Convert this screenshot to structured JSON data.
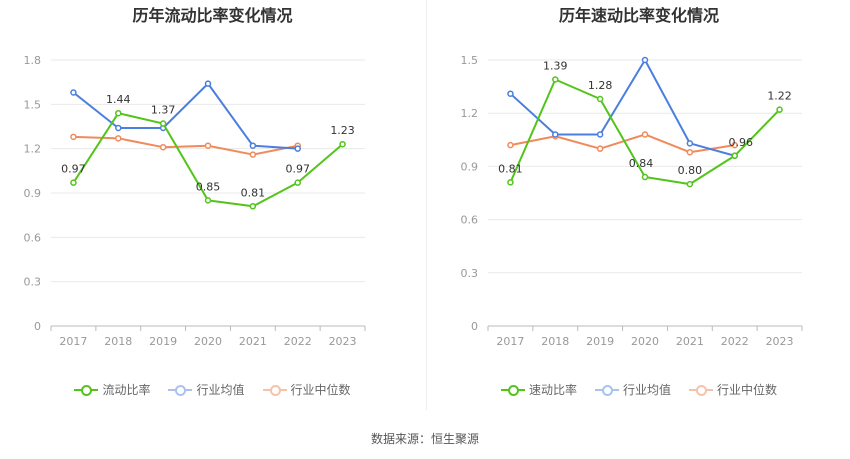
{
  "source": "数据来源：恒生聚源",
  "colors": {
    "primary": "#52c41a",
    "industry_avg": "#4a7fe0",
    "industry_median": "#f08a5d",
    "grid": "#e9e9e9",
    "axis": "#bbbbbb"
  },
  "chart_data": [
    {
      "type": "line",
      "title": "历年流动比率变化情况",
      "categories": [
        "2017",
        "2018",
        "2019",
        "2020",
        "2021",
        "2022",
        "2023"
      ],
      "ylim": [
        0,
        1.8
      ],
      "yticks": [
        "0",
        "0.3",
        "0.6",
        "0.9",
        "1.2",
        "1.5",
        "1.8"
      ],
      "grid": true,
      "legend_position": "bottom",
      "series": [
        {
          "name": "流动比率",
          "color": "#52c41a",
          "values": [
            0.97,
            1.44,
            1.37,
            0.85,
            0.81,
            0.97,
            1.23
          ],
          "labels": [
            "0.97",
            "1.44",
            "1.37",
            "0.85",
            "0.81",
            "0.97",
            "1.23"
          ]
        },
        {
          "name": "行业均值",
          "color": "#4a7fe0",
          "values": [
            1.58,
            1.34,
            1.34,
            1.64,
            1.22,
            1.2,
            null
          ]
        },
        {
          "name": "行业中位数",
          "color": "#f08a5d",
          "values": [
            1.28,
            1.27,
            1.21,
            1.22,
            1.16,
            1.22,
            null
          ]
        }
      ]
    },
    {
      "type": "line",
      "title": "历年速动比率变化情况",
      "categories": [
        "2017",
        "2018",
        "2019",
        "2020",
        "2021",
        "2022",
        "2023"
      ],
      "ylim": [
        0,
        1.5
      ],
      "yticks": [
        "0",
        "0.3",
        "0.6",
        "0.9",
        "1.2",
        "1.5"
      ],
      "grid": true,
      "legend_position": "bottom",
      "series": [
        {
          "name": "速动比率",
          "color": "#52c41a",
          "values": [
            0.81,
            1.39,
            1.28,
            0.84,
            0.8,
            0.96,
            1.22
          ],
          "labels": [
            "0.81",
            "1.39",
            "1.28",
            "0.84",
            "0.80",
            "0.96",
            "1.22"
          ]
        },
        {
          "name": "行业均值",
          "color": "#4a7fe0",
          "values": [
            1.31,
            1.08,
            1.08,
            1.5,
            1.03,
            0.96,
            null
          ]
        },
        {
          "name": "行业中位数",
          "color": "#f08a5d",
          "values": [
            1.02,
            1.07,
            1.0,
            1.08,
            0.98,
            1.02,
            null
          ]
        }
      ]
    }
  ]
}
